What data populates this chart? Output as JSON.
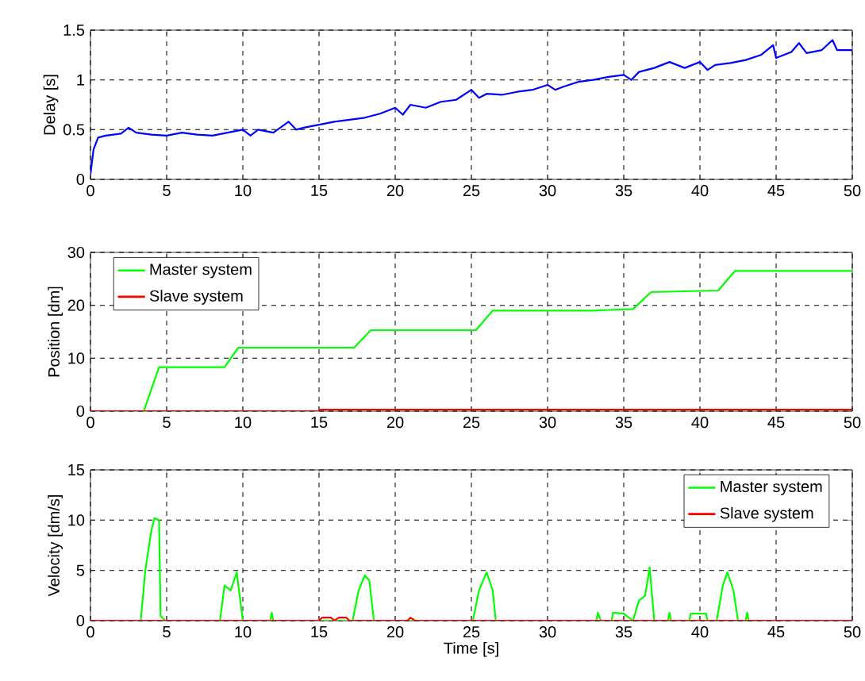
{
  "chart_data": [
    {
      "type": "line",
      "ylabel": "Delay [s]",
      "xlim": [
        0,
        50
      ],
      "ylim": [
        0,
        1.5
      ],
      "xticks": [
        0,
        5,
        10,
        15,
        20,
        25,
        30,
        35,
        40,
        45,
        50
      ],
      "yticks": [
        0,
        0.5,
        1,
        1.5
      ],
      "grid": true,
      "series": [
        {
          "color": "#0000ff",
          "x": [
            0,
            0.2,
            0.5,
            1,
            2,
            2.5,
            3,
            4,
            5,
            6,
            7,
            8,
            9,
            10,
            10.5,
            11,
            12,
            13,
            13.5,
            14,
            15,
            16,
            17,
            18,
            19,
            20,
            20.5,
            21,
            22,
            23,
            24,
            25,
            25.5,
            26,
            27,
            28,
            29,
            30,
            30.5,
            31,
            32,
            33,
            34,
            35,
            35.5,
            36,
            37,
            38,
            39,
            40,
            40.5,
            41,
            42,
            43,
            44,
            44.8,
            45,
            46,
            46.5,
            47,
            48,
            48.7,
            49,
            50
          ],
          "values": [
            0.05,
            0.3,
            0.42,
            0.44,
            0.46,
            0.52,
            0.47,
            0.45,
            0.44,
            0.47,
            0.45,
            0.44,
            0.47,
            0.5,
            0.44,
            0.5,
            0.47,
            0.58,
            0.5,
            0.52,
            0.55,
            0.58,
            0.6,
            0.62,
            0.66,
            0.72,
            0.65,
            0.75,
            0.72,
            0.78,
            0.8,
            0.9,
            0.82,
            0.86,
            0.85,
            0.88,
            0.9,
            0.95,
            0.9,
            0.93,
            0.98,
            1.0,
            1.03,
            1.05,
            1.0,
            1.08,
            1.12,
            1.18,
            1.12,
            1.18,
            1.1,
            1.15,
            1.17,
            1.2,
            1.25,
            1.35,
            1.22,
            1.28,
            1.37,
            1.27,
            1.3,
            1.4,
            1.3,
            1.3
          ]
        }
      ]
    },
    {
      "type": "line",
      "ylabel": "Position [dm]",
      "xlim": [
        0,
        50
      ],
      "ylim": [
        0,
        30
      ],
      "xticks": [
        0,
        5,
        10,
        15,
        20,
        25,
        30,
        35,
        40,
        45,
        50
      ],
      "yticks": [
        0,
        10,
        20,
        30
      ],
      "grid": true,
      "legend": "top left",
      "series": [
        {
          "name": "Master system",
          "color": "#00ff00",
          "x": [
            0,
            3.5,
            4.5,
            8.8,
            9.7,
            17.3,
            18.4,
            25.3,
            26.4,
            33,
            35.6,
            36.8,
            41.2,
            42.3,
            50
          ],
          "values": [
            0,
            0,
            8.3,
            8.3,
            12,
            12,
            15.3,
            15.3,
            19,
            19,
            19.3,
            22.5,
            22.8,
            26.5,
            26.5
          ]
        },
        {
          "name": "Slave system",
          "color": "#ff0000",
          "x": [
            0,
            15,
            15.1,
            50
          ],
          "values": [
            0,
            0,
            0.3,
            0.3
          ]
        }
      ]
    },
    {
      "type": "line",
      "xlabel": "Time [s]",
      "ylabel": "Velocity [dm/s]",
      "xlim": [
        0,
        50
      ],
      "ylim": [
        0,
        15
      ],
      "xticks": [
        0,
        5,
        10,
        15,
        20,
        25,
        30,
        35,
        40,
        45,
        50
      ],
      "yticks": [
        0,
        5,
        10,
        15
      ],
      "grid": true,
      "legend": "top right",
      "series": [
        {
          "name": "Master system",
          "color": "#00ff00",
          "x": [
            0,
            3.3,
            3.6,
            4,
            4.2,
            4.5,
            4.6,
            4.9,
            8.5,
            8.8,
            9.2,
            9.6,
            10,
            11.8,
            11.9,
            12,
            17.2,
            17.6,
            18,
            18.3,
            18.6,
            25.1,
            25.5,
            26,
            26.4,
            26.6,
            33.2,
            33.3,
            33.5,
            34.2,
            34.3,
            35,
            35.6,
            36,
            36.4,
            36.7,
            37,
            37.9,
            38,
            38.1,
            39.3,
            39.4,
            40.4,
            40.5,
            41.1,
            41.5,
            41.8,
            42.2,
            42.5,
            43,
            43.1,
            43.2,
            50
          ],
          "values": [
            0,
            0,
            5,
            9,
            10.2,
            10,
            0.5,
            0,
            0,
            3.5,
            3,
            4.8,
            0,
            0,
            0.8,
            0,
            0,
            3,
            4.5,
            4,
            0,
            0,
            3,
            4.8,
            3,
            0,
            0,
            0.8,
            0,
            0,
            0.8,
            0.7,
            0,
            2,
            2.5,
            5.3,
            0,
            0,
            0.8,
            0,
            0,
            0.7,
            0.7,
            0,
            0,
            3.5,
            4.8,
            3,
            0,
            0,
            0.8,
            0,
            0
          ]
        },
        {
          "name": "Slave system",
          "color": "#ff0000",
          "x": [
            0,
            15,
            15.2,
            15.8,
            16,
            16.3,
            16.8,
            17,
            20.8,
            21,
            21.3,
            50
          ],
          "values": [
            0,
            0,
            0.3,
            0.3,
            0,
            0.3,
            0.3,
            0,
            0,
            0.3,
            0,
            0
          ]
        }
      ]
    }
  ]
}
